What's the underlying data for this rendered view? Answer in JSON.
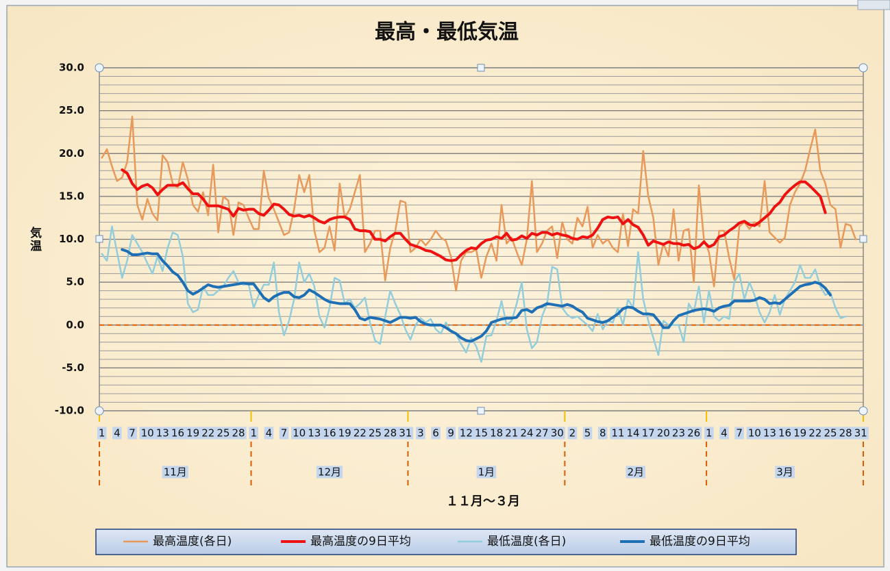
{
  "chart_data": {
    "type": "line",
    "title": "最高・最低気温",
    "y_label": "気温",
    "x_label": "１１月～３月",
    "ylim": [
      -10,
      30
    ],
    "yticks": [
      {
        "value": -10,
        "label": "-10.0"
      },
      {
        "value": -5,
        "label": "-5.0"
      },
      {
        "value": 0,
        "label": "0.0"
      },
      {
        "value": 5,
        "label": "5.0"
      },
      {
        "value": 10,
        "label": "10.0"
      },
      {
        "value": 15,
        "label": "15.0"
      },
      {
        "value": 20,
        "label": "20.0"
      },
      {
        "value": 25,
        "label": "25.0"
      },
      {
        "value": 30,
        "label": "30.0"
      }
    ],
    "y_minor_step": 1,
    "grid": true,
    "zero_line": {
      "value": 0,
      "color": "#e05a00"
    },
    "legend": "bottom",
    "x_groups": [
      "11月",
      "12月",
      "1月",
      "2月",
      "3月"
    ],
    "categories": [
      "1",
      null,
      null,
      "4",
      null,
      null,
      "7",
      null,
      null,
      "10",
      null,
      null,
      "13",
      null,
      null,
      "16",
      null,
      null,
      "19",
      null,
      null,
      "22",
      null,
      null,
      "25",
      null,
      null,
      "28",
      null,
      null,
      "1",
      null,
      null,
      "4",
      null,
      null,
      "7",
      null,
      null,
      "10",
      null,
      null,
      "13",
      null,
      null,
      "16",
      null,
      null,
      "19",
      null,
      null,
      "22",
      null,
      null,
      "25",
      null,
      null,
      "28",
      null,
      null,
      "31",
      null,
      null,
      "3",
      null,
      null,
      "6",
      null,
      null,
      "9",
      null,
      null,
      "12",
      null,
      null,
      "15",
      null,
      null,
      "18",
      null,
      null,
      "21",
      null,
      null,
      "24",
      null,
      null,
      "27",
      null,
      null,
      "30",
      null,
      null,
      "2",
      null,
      null,
      "5",
      null,
      null,
      "8",
      null,
      null,
      "11",
      null,
      null,
      "14",
      null,
      null,
      "17",
      null,
      null,
      "20",
      null,
      null,
      "23",
      null,
      null,
      "26",
      null,
      null,
      "1",
      null,
      null,
      "4",
      null,
      null,
      "7",
      null,
      null,
      "10",
      null,
      null,
      "13",
      null,
      null,
      "16",
      null,
      null,
      "19",
      null,
      null,
      "22",
      null,
      null,
      "25",
      null,
      null,
      "28",
      null,
      null,
      "31"
    ],
    "series": [
      {
        "name": "最高温度(各日)",
        "color": "#e8995a",
        "width": 2.5,
        "values": [
          19.5,
          20.5,
          18.5,
          16.8,
          17.2,
          19,
          24.3,
          14,
          12.3,
          14.7,
          13,
          12.2,
          19.8,
          19,
          16.5,
          16,
          19,
          17,
          14,
          13.2,
          15.5,
          12.8,
          18.7,
          10.8,
          15,
          14.5,
          10.5,
          14.3,
          14,
          12.5,
          11.2,
          11.2,
          18,
          14.8,
          13.5,
          12,
          10.5,
          10.8,
          13.5,
          17.5,
          15.5,
          17.5,
          11,
          8.5,
          9,
          11.5,
          8.7,
          16.5,
          12.5,
          13.5,
          15.5,
          17.5,
          8.5,
          9.5,
          11,
          11,
          5.2,
          9,
          11,
          14.5,
          14.3,
          8.5,
          9,
          10,
          9.3,
          10,
          11,
          10.2,
          9.8,
          8,
          4,
          7.5,
          8.5,
          8.5,
          8.8,
          5.5,
          8,
          9.5,
          7.5,
          14,
          9.5,
          10.2,
          8.5,
          7,
          10,
          16.8,
          8.5,
          9.5,
          11,
          11.5,
          7.8,
          12,
          10,
          9.5,
          12.5,
          11.5,
          13.8,
          9,
          10.5,
          9.5,
          10,
          9,
          8.5,
          13,
          9.2,
          13.5,
          13,
          20.3,
          15,
          12.5,
          7,
          9.5,
          8,
          13.5,
          7.5,
          11,
          11.2,
          5,
          16.3,
          10,
          8.5,
          4.5,
          11,
          11,
          7.8,
          5.3,
          11.5,
          12,
          11.2,
          12,
          11.5,
          16.8,
          10.8,
          10.2,
          9.6,
          10.2,
          14,
          15.5,
          16.5,
          18,
          20.5,
          22.8,
          18,
          16.5,
          14,
          13.5,
          9,
          11.8,
          11.6,
          10,
          null
        ]
      },
      {
        "name": "最高温度の9日平均",
        "color": "#ee1111",
        "width": 4,
        "values": [
          null,
          null,
          null,
          null,
          18.1,
          17.7,
          16.5,
          15.8,
          16.2,
          16.4,
          16,
          15.2,
          15.8,
          16.3,
          16.3,
          16.3,
          16.6,
          15.9,
          15.3,
          15.3,
          14.7,
          13.9,
          13.9,
          13.9,
          13.7,
          13.5,
          12.7,
          13.6,
          13.4,
          13.5,
          13.5,
          13,
          12.8,
          13.4,
          14.1,
          14,
          13.5,
          12.9,
          12.7,
          12.8,
          12.6,
          12.8,
          12.5,
          12.1,
          11.9,
          12.3,
          12.5,
          12.6,
          12.6,
          12.3,
          11.2,
          11,
          11,
          10.9,
          10,
          10,
          9.8,
          10.3,
          10.7,
          10.7,
          10,
          9.4,
          9.2,
          9,
          8.7,
          8.6,
          8.3,
          8,
          7.6,
          7.5,
          7.6,
          8.2,
          8.7,
          9,
          8.9,
          9.5,
          9.9,
          10,
          10.3,
          10.1,
          10.7,
          9.9,
          10,
          10.4,
          10.1,
          10.7,
          10.5,
          10.8,
          10.8,
          10.5,
          10.7,
          10.5,
          10.4,
          10.1,
          10,
          10.3,
          10.2,
          10.5,
          11.3,
          12.3,
          12.6,
          12.5,
          12.6,
          11.8,
          12.3,
          11.7,
          11.4,
          10.5,
          9.3,
          9.8,
          9.6,
          9.4,
          9.7,
          9.5,
          9.5,
          9.3,
          9.4,
          8.9,
          9.1,
          9.7,
          9.1,
          9.4,
          10.3,
          10.5,
          11,
          11.4,
          11.9,
          12.1,
          11.7,
          11.6,
          12,
          12.5,
          13,
          13.8,
          14.3,
          15.2,
          15.8,
          16.3,
          16.7,
          16.7,
          16.2,
          15.6,
          15,
          13.1,
          null,
          null,
          null,
          null,
          null,
          null,
          null
        ]
      },
      {
        "name": "最低温度(各日)",
        "color": "#92cddc",
        "width": 2.5,
        "values": [
          8.3,
          7.5,
          11.5,
          8.5,
          5.5,
          7.5,
          10.5,
          9.5,
          8.5,
          7.2,
          6,
          8,
          6.3,
          9,
          10.8,
          10.5,
          8,
          2.5,
          1.5,
          1.8,
          4.5,
          3.5,
          3.5,
          4,
          4.5,
          5.5,
          6.3,
          5,
          4.7,
          4.8,
          2,
          3.5,
          4.7,
          4.7,
          7.3,
          1.5,
          -1.2,
          0.5,
          3,
          7.3,
          5,
          6,
          4.5,
          1,
          -0.3,
          2,
          5.5,
          5.2,
          2.5,
          3,
          2,
          2.5,
          3.2,
          0.3,
          -1.8,
          -2.2,
          1,
          4,
          2.5,
          1.2,
          -0.5,
          -1.7,
          0,
          0.8,
          0.3,
          0.7,
          -0.5,
          -1,
          0.3,
          -0.8,
          -1,
          -2.2,
          -3.2,
          -1.5,
          -2.5,
          -4.3,
          -1.3,
          -1.2,
          0.5,
          2.8,
          0,
          0.5,
          2.5,
          5,
          -0.5,
          -2.7,
          -2,
          1,
          2.5,
          6.8,
          6.5,
          2,
          1.2,
          0.8,
          1,
          0.5,
          0,
          -0.7,
          1.3,
          -0.5,
          0.5,
          0.3,
          2,
          0,
          3,
          2,
          8.5,
          3,
          0.5,
          -1.5,
          -3.5,
          0.5,
          0,
          0,
          0,
          -2,
          2.5,
          1.5,
          4.5,
          0.3,
          4,
          1,
          0.5,
          1,
          0.7,
          5,
          6,
          3,
          5,
          3.5,
          1.5,
          0.3,
          1.5,
          3.5,
          1.2,
          3,
          4,
          5,
          7,
          5.5,
          5.5,
          6.5,
          4.5,
          3.5,
          3.8,
          2,
          0.8,
          1,
          null,
          null,
          null
        ]
      },
      {
        "name": "最低温度の9日平均",
        "color": "#1f6fb5",
        "width": 4,
        "values": [
          null,
          null,
          null,
          null,
          8.8,
          8.6,
          8.2,
          8.2,
          8.3,
          8.4,
          8.3,
          8.3,
          7.5,
          6.9,
          6.2,
          5.8,
          5,
          4,
          3.6,
          3.9,
          4.3,
          4.7,
          4.5,
          4.4,
          4.5,
          4.6,
          4.7,
          4.8,
          4.9,
          4.8,
          4.8,
          4,
          3.2,
          2.8,
          3.3,
          3.6,
          3.8,
          3.8,
          3.3,
          3.2,
          3.5,
          4.1,
          3.8,
          3.4,
          3,
          2.7,
          2.6,
          2.5,
          2.5,
          2.5,
          1.8,
          0.8,
          0.6,
          0.9,
          0.8,
          0.7,
          0.5,
          0.3,
          0.6,
          0.9,
          0.9,
          0.8,
          0.9,
          0.4,
          0.1,
          0,
          0,
          0,
          -0.3,
          -0.7,
          -1,
          -1.5,
          -1.8,
          -1.9,
          -1.6,
          -1.3,
          -0.7,
          0.3,
          0.5,
          0.7,
          0.8,
          0.8,
          0.9,
          1.7,
          1.8,
          1.5,
          2,
          2.2,
          2.5,
          2.4,
          2.3,
          2.2,
          2.4,
          2.2,
          1.8,
          1.5,
          0.8,
          0.6,
          0.4,
          0.3,
          0.5,
          0.9,
          1.3,
          1.9,
          2.1,
          2,
          1.6,
          1.3,
          1.3,
          1.2,
          0.5,
          -0.3,
          -0.3,
          0.5,
          1.1,
          1.3,
          1.5,
          1.7,
          1.8,
          1.9,
          1.8,
          1.6,
          2,
          2.2,
          2.3,
          2.8,
          2.8,
          2.8,
          2.8,
          2.9,
          3.2,
          3,
          2.5,
          2.6,
          2.5,
          3,
          3.5,
          4,
          4.5,
          4.7,
          4.8,
          5,
          4.8,
          4.3,
          3.5,
          null,
          null,
          null,
          null,
          null,
          null
        ]
      }
    ]
  }
}
